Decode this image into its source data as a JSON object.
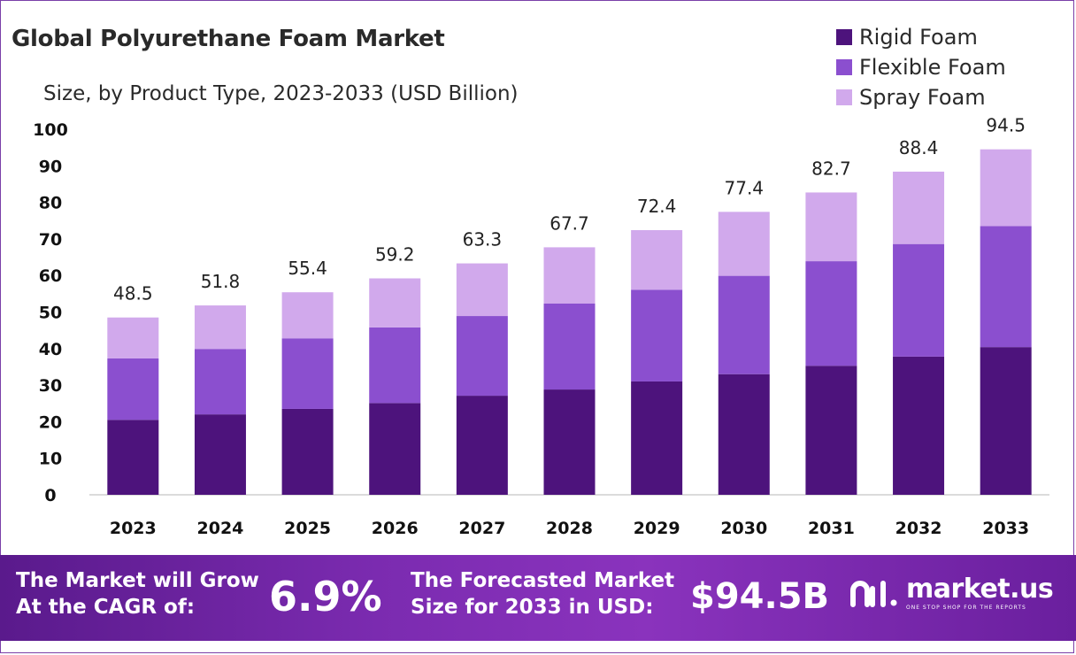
{
  "chart_data": {
    "type": "bar",
    "stacked": true,
    "title": "Global Polyurethane Foam Market",
    "subtitle": "Size, by Product Type, 2023-2033 (USD Billion)",
    "xlabel": "",
    "ylabel": "",
    "ylim": [
      0,
      100
    ],
    "yticks": [
      "0",
      "10",
      "20",
      "30",
      "40",
      "50",
      "60",
      "70",
      "80",
      "90",
      "100"
    ],
    "categories": [
      "2023",
      "2024",
      "2025",
      "2026",
      "2027",
      "2028",
      "2029",
      "2030",
      "2031",
      "2032",
      "2033"
    ],
    "series": [
      {
        "name": "Rigid Foam",
        "color": "#4d137c",
        "values": [
          20.5,
          22.0,
          23.5,
          25.1,
          27.1,
          28.8,
          31.0,
          33.0,
          35.3,
          37.8,
          40.4
        ]
      },
      {
        "name": "Flexible Foam",
        "color": "#8b4fcf",
        "values": [
          16.8,
          17.9,
          19.3,
          20.7,
          21.8,
          23.5,
          25.1,
          26.9,
          28.6,
          30.8,
          33.1
        ]
      },
      {
        "name": "Spray Foam",
        "color": "#d1a9ec",
        "values": [
          11.2,
          11.9,
          12.6,
          13.4,
          14.4,
          15.4,
          16.3,
          17.5,
          18.8,
          19.8,
          21.0
        ]
      }
    ],
    "totals": [
      "48.5",
      "51.8",
      "55.4",
      "59.2",
      "63.3",
      "67.7",
      "72.4",
      "77.4",
      "82.7",
      "88.4",
      "94.5"
    ],
    "legend_position": "top-right",
    "grid": false
  },
  "banner": {
    "cagr_line1": "The Market will Grow",
    "cagr_line2": "At the CAGR of:",
    "cagr_value": "6.9%",
    "forecast_line1": "The Forecasted Market",
    "forecast_line2": "Size for 2033 in USD:",
    "forecast_value": "$94.5B",
    "brand_name": "market.us",
    "brand_tagline": "ONE STOP SHOP FOR THE REPORTS"
  }
}
